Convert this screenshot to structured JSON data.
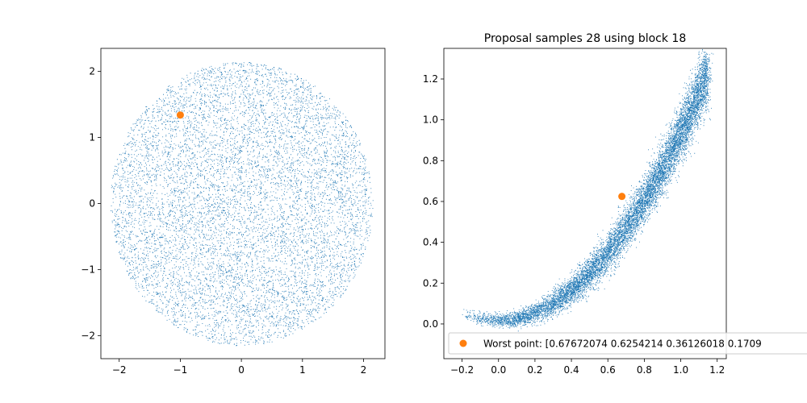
{
  "chart_data": [
    {
      "type": "scatter",
      "title": "",
      "xlabel": "",
      "ylabel": "",
      "xlim": [
        -2.3,
        2.35
      ],
      "ylim": [
        -2.35,
        2.35
      ],
      "xticks": [
        -2,
        -1,
        0,
        1,
        2
      ],
      "yticks": [
        -2,
        -1,
        0,
        1,
        2
      ],
      "xtick_labels": [
        "−2",
        "−1",
        "0",
        "1",
        "2"
      ],
      "ytick_labels": [
        "−2",
        "−1",
        "0",
        "1",
        "2"
      ],
      "grid": false,
      "series": [
        {
          "kind": "samples",
          "color": "#1f77b4",
          "marker": "pixel",
          "distribution": "uniform-disk",
          "center": [
            0,
            0
          ],
          "radius": 2.15,
          "count": 9000
        },
        {
          "kind": "highlight",
          "color": "#ff7f0e",
          "marker": "circle",
          "points": [
            [
              -1.0,
              1.34
            ]
          ]
        }
      ]
    },
    {
      "type": "scatter",
      "title": "Proposal samples 28 using block 18",
      "xlabel": "",
      "ylabel": "",
      "xlim": [
        -0.3,
        1.25
      ],
      "ylim": [
        -0.17,
        1.35
      ],
      "xticks": [
        -0.2,
        0.0,
        0.2,
        0.4,
        0.6,
        0.8,
        1.0,
        1.2
      ],
      "yticks": [
        0.0,
        0.2,
        0.4,
        0.6,
        0.8,
        1.0,
        1.2
      ],
      "xtick_labels": [
        "−0.2",
        "0.0",
        "0.2",
        "0.4",
        "0.6",
        "0.8",
        "1.0",
        "1.2"
      ],
      "ytick_labels": [
        "0.0",
        "0.2",
        "0.4",
        "0.6",
        "0.8",
        "1.0",
        "1.2"
      ],
      "grid": false,
      "legend": {
        "position": "lower-right",
        "entries": [
          {
            "label": "Worst point: [0.67672074 0.6254214  0.36126018 0.1709",
            "color": "#ff7f0e",
            "marker": "circle"
          }
        ]
      },
      "series": [
        {
          "kind": "samples",
          "color": "#1f77b4",
          "marker": "pixel",
          "distribution": "banana-band",
          "x_range": [
            -0.2,
            1.15
          ],
          "count": 10000
        },
        {
          "name": "Worst point: [0.67672074 0.6254214  0.36126018 0.1709",
          "kind": "highlight",
          "color": "#ff7f0e",
          "marker": "circle",
          "points": [
            [
              0.677,
              0.625
            ]
          ]
        }
      ]
    }
  ]
}
